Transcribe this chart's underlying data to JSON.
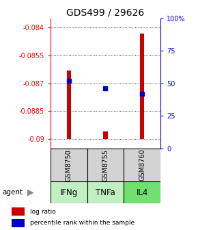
{
  "title": "GDS499 / 29626",
  "samples": [
    "GSM8750",
    "GSM8755",
    "GSM8760"
  ],
  "agents": [
    "IFNg",
    "TNFa",
    "IL4"
  ],
  "agent_colors": [
    "#c0f0c0",
    "#c0f0c0",
    "#70e070"
  ],
  "sample_bg": "#d3d3d3",
  "log_ratios": [
    -0.0863,
    -0.0896,
    -0.0843
  ],
  "baseline": -0.09,
  "percentile_ranks": [
    52,
    46,
    42
  ],
  "ylim_left": [
    -0.0905,
    -0.0835
  ],
  "ylim_right": [
    0,
    100
  ],
  "yticks_left": [
    -0.09,
    -0.0885,
    -0.087,
    -0.0855,
    -0.084
  ],
  "yticks_right": [
    0,
    25,
    50,
    75,
    100
  ],
  "ytick_labels_left": [
    "-0.09",
    "-0.0885",
    "-0.087",
    "-0.0855",
    "-0.084"
  ],
  "ytick_labels_right": [
    "0",
    "25",
    "50",
    "75",
    "100%"
  ],
  "bar_color": "#cc0000",
  "percentile_color": "#0000cc",
  "title_fontsize": 10,
  "tick_fontsize": 7,
  "agent_fontsize": 8.5,
  "sample_fontsize": 7
}
